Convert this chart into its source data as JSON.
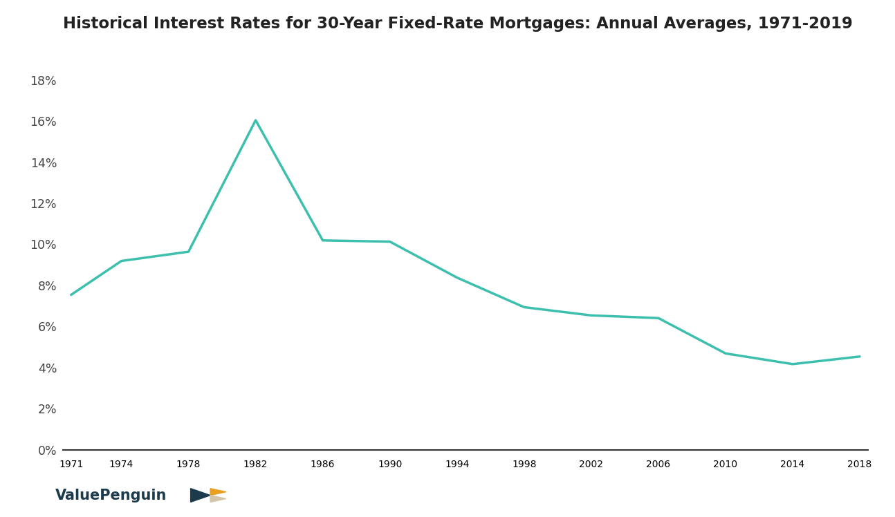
{
  "title": "Historical Interest Rates for 30-Year Fixed-Rate Mortgages: Annual Averages, 1971-2019",
  "years": [
    1971,
    1974,
    1978,
    1982,
    1986,
    1990,
    1994,
    1998,
    2002,
    2006,
    2010,
    2014,
    2018
  ],
  "rates": [
    7.54,
    9.19,
    9.64,
    16.04,
    10.19,
    10.13,
    8.38,
    6.94,
    6.54,
    6.41,
    4.69,
    4.17,
    4.54
  ],
  "line_color": "#3dbfad",
  "line_width": 2.5,
  "background_color": "#ffffff",
  "title_color": "#222222",
  "tick_label_color": "#444444",
  "title_fontsize": 16.5,
  "tick_fontsize": 12.5,
  "ytick_labels": [
    "0%",
    "2%",
    "4%",
    "6%",
    "8%",
    "10%",
    "12%",
    "14%",
    "16%",
    "18%"
  ],
  "ytick_values": [
    0,
    2,
    4,
    6,
    8,
    10,
    12,
    14,
    16,
    18
  ],
  "xtick_values": [
    1971,
    1974,
    1978,
    1982,
    1986,
    1990,
    1994,
    1998,
    2002,
    2006,
    2010,
    2014,
    2018
  ],
  "ylim": [
    0,
    19.5
  ],
  "xlim_left": 1970.5,
  "xlim_right": 2018.5,
  "logo_text": "ValuePenguin",
  "logo_color": "#1b3a4b",
  "logo_fontsize": 15,
  "logo_tri_dark": "#1b3a4b",
  "logo_tri_yellow": "#e8a020",
  "logo_tri_beige": "#d4c5a9"
}
